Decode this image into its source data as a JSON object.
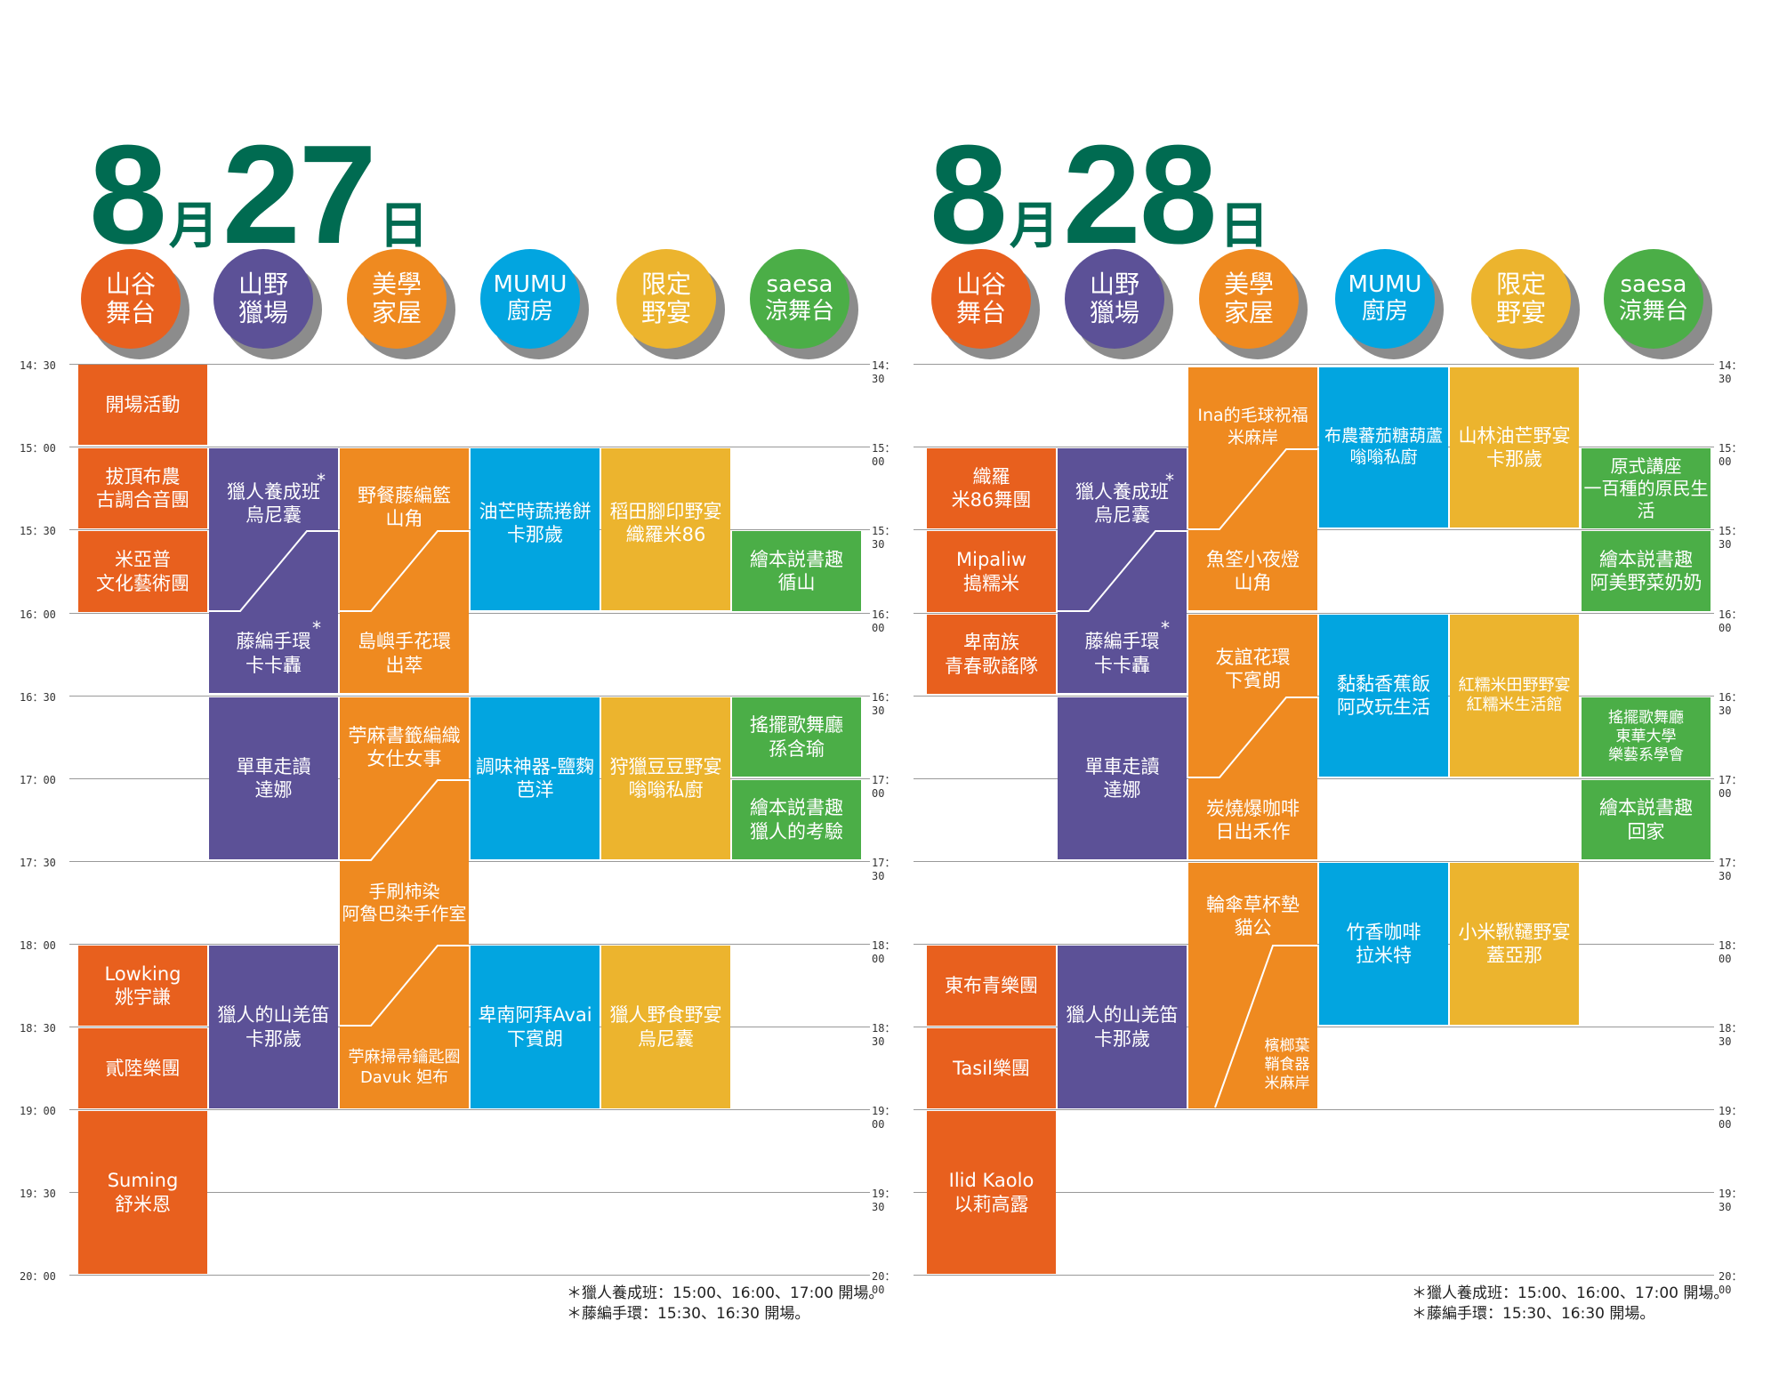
{
  "days": [
    {
      "date": {
        "month_num": "8",
        "month": "月",
        "day_num": "27",
        "day": "日"
      },
      "venues": [
        {
          "label": "山谷\n舞台",
          "color": "#e8601e"
        },
        {
          "label": "山野\n獵場",
          "color": "#5c5197"
        },
        {
          "label": "美學\n家屋",
          "color": "#ef8a20"
        },
        {
          "label": "MUMU\n廚房",
          "color": "#02a5e0"
        },
        {
          "label": "限定\n野宴",
          "color": "#ecb42e"
        },
        {
          "label": "saesa\n涼舞台",
          "color": "#4bae47"
        }
      ],
      "times": [
        "14：30",
        "15：00",
        "15：30",
        "16：00",
        "16：30",
        "17：00",
        "17：30",
        "18：00",
        "18：30",
        "19：00",
        "19：30",
        "20：00"
      ],
      "events": {
        "valley": [
          "開場活動",
          "拔頂布農\n古調合音團",
          "米亞普\n文化藝術團",
          "Lowking\n姚宇謙",
          "貳陸樂團",
          "Suming\n舒米恩"
        ],
        "hunt": [
          "獵人養成班\n烏尼囊",
          "藤編手環\n卡卡轟",
          "單車走讀\n達娜",
          "獵人的山羌笛\n卡那歲"
        ],
        "house": [
          "野餐藤編籃\n山角",
          "島嶼手花環\n出萃",
          "苧麻書籤編織\n女仕女事",
          "手刷柿染\n阿魯巴染手作室",
          "苧麻掃帚鑰匙圈\nDavuk 妲布"
        ],
        "kitchen": [
          "油芒時蔬捲餅\n卡那歲",
          "調味神器-鹽麴\n芭洋",
          "卑南阿拜Avai\n下賓朗"
        ],
        "feast": [
          "稻田腳印野宴\n織羅米86",
          "狩獵豆豆野宴\n嗡嗡私廚",
          "獵人野食野宴\n烏尼囊"
        ],
        "saesa": [
          "繪本説書趣\n循山",
          "搖擺歌舞廳\n孫含瑜",
          "繪本説書趣\n獵人的考驗"
        ]
      },
      "star": "*",
      "notes": "＊獵人養成班：15:00、16:00、17:00 開場。\n＊藤編手環：15:30、16:30 開場。"
    },
    {
      "date": {
        "month_num": "8",
        "month": "月",
        "day_num": "28",
        "day": "日"
      },
      "venues": [
        {
          "label": "山谷\n舞台",
          "color": "#e8601e"
        },
        {
          "label": "山野\n獵場",
          "color": "#5c5197"
        },
        {
          "label": "美學\n家屋",
          "color": "#ef8a20"
        },
        {
          "label": "MUMU\n廚房",
          "color": "#02a5e0"
        },
        {
          "label": "限定\n野宴",
          "color": "#ecb42e"
        },
        {
          "label": "saesa\n涼舞台",
          "color": "#4bae47"
        }
      ],
      "times": [
        "14：30",
        "15：00",
        "15：30",
        "16：00",
        "16：30",
        "17：00",
        "17：30",
        "18：00",
        "18：30",
        "19：00",
        "19：30",
        "20：00"
      ],
      "events": {
        "valley": [
          "織羅\n米86舞團",
          "Mipaliw\n搗糯米",
          "卑南族\n青春歌謠隊",
          "東布青樂團",
          "Tasil樂團",
          "Ilid Kaolo\n以莉高露"
        ],
        "hunt": [
          "獵人養成班\n烏尼囊",
          "藤編手環\n卡卡轟",
          "單車走讀\n達娜",
          "獵人的山羌笛\n卡那歲"
        ],
        "house": [
          "Ina的毛球祝福\n米麻岸",
          "魚筌小夜燈\n山角",
          "友誼花環\n下賓朗",
          "炭燒爆咖啡\n日出禾作",
          "輪傘草杯墊\n貓公",
          "檳榔葉\n鞘食器\n米麻岸"
        ],
        "kitchen": [
          "布農蕃茄糖葫蘆\n嗡嗡私廚",
          "黏黏香蕉飯\n阿改玩生活",
          "竹香咖啡\n拉米特"
        ],
        "feast": [
          "山林油芒野宴\n卡那歲",
          "紅糯米田野野宴\n紅糯米生活館",
          "小米鞦韆野宴\n蓋亞那"
        ],
        "saesa": [
          "原式講座\n一百種的原民生活",
          "繪本説書趣\n阿美野菜奶奶",
          "搖擺歌舞廳\n東華大學\n樂藝系學會",
          "繪本説書趣\n回家"
        ]
      },
      "star": "*",
      "notes": "＊獵人養成班：15:00、16:00、17:00 開場。\n＊藤編手環：15:30、16:30 開場。"
    }
  ]
}
